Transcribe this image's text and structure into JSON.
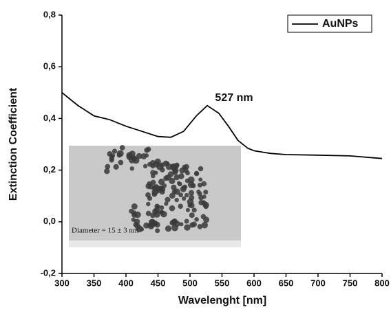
{
  "chart_data": {
    "type": "line",
    "x_label": "Wavelenght [nm]",
    "y_label": "Extinction Coefficient",
    "series": [
      {
        "name": "AuNPs",
        "color": "#000000",
        "x": [
          300,
          325,
          350,
          375,
          400,
          425,
          450,
          470,
          490,
          510,
          527,
          545,
          560,
          575,
          590,
          600,
          625,
          650,
          700,
          750,
          800
        ],
        "values": [
          0.5,
          0.45,
          0.41,
          0.395,
          0.37,
          0.35,
          0.33,
          0.327,
          0.35,
          0.41,
          0.45,
          0.42,
          0.37,
          0.315,
          0.285,
          0.275,
          0.265,
          0.26,
          0.258,
          0.255,
          0.245
        ]
      }
    ],
    "xlim": [
      300,
      800
    ],
    "xticks": [
      300,
      350,
      400,
      450,
      500,
      550,
      600,
      650,
      700,
      750,
      800
    ],
    "ylim": [
      -0.2,
      0.8
    ],
    "yticks": [
      {
        "value": -0.2,
        "label": "-0,2"
      },
      {
        "value": 0,
        "label": "0,0"
      },
      {
        "value": 0.2,
        "label": "0,2"
      },
      {
        "value": 0.4,
        "label": "0,4"
      },
      {
        "value": 0.6,
        "label": "0,6"
      },
      {
        "value": 0.8,
        "label": "0,8"
      }
    ],
    "annotations": [
      "527 nm",
      "Diameter = 15 ± 3 nm"
    ],
    "legend": "upper right"
  }
}
